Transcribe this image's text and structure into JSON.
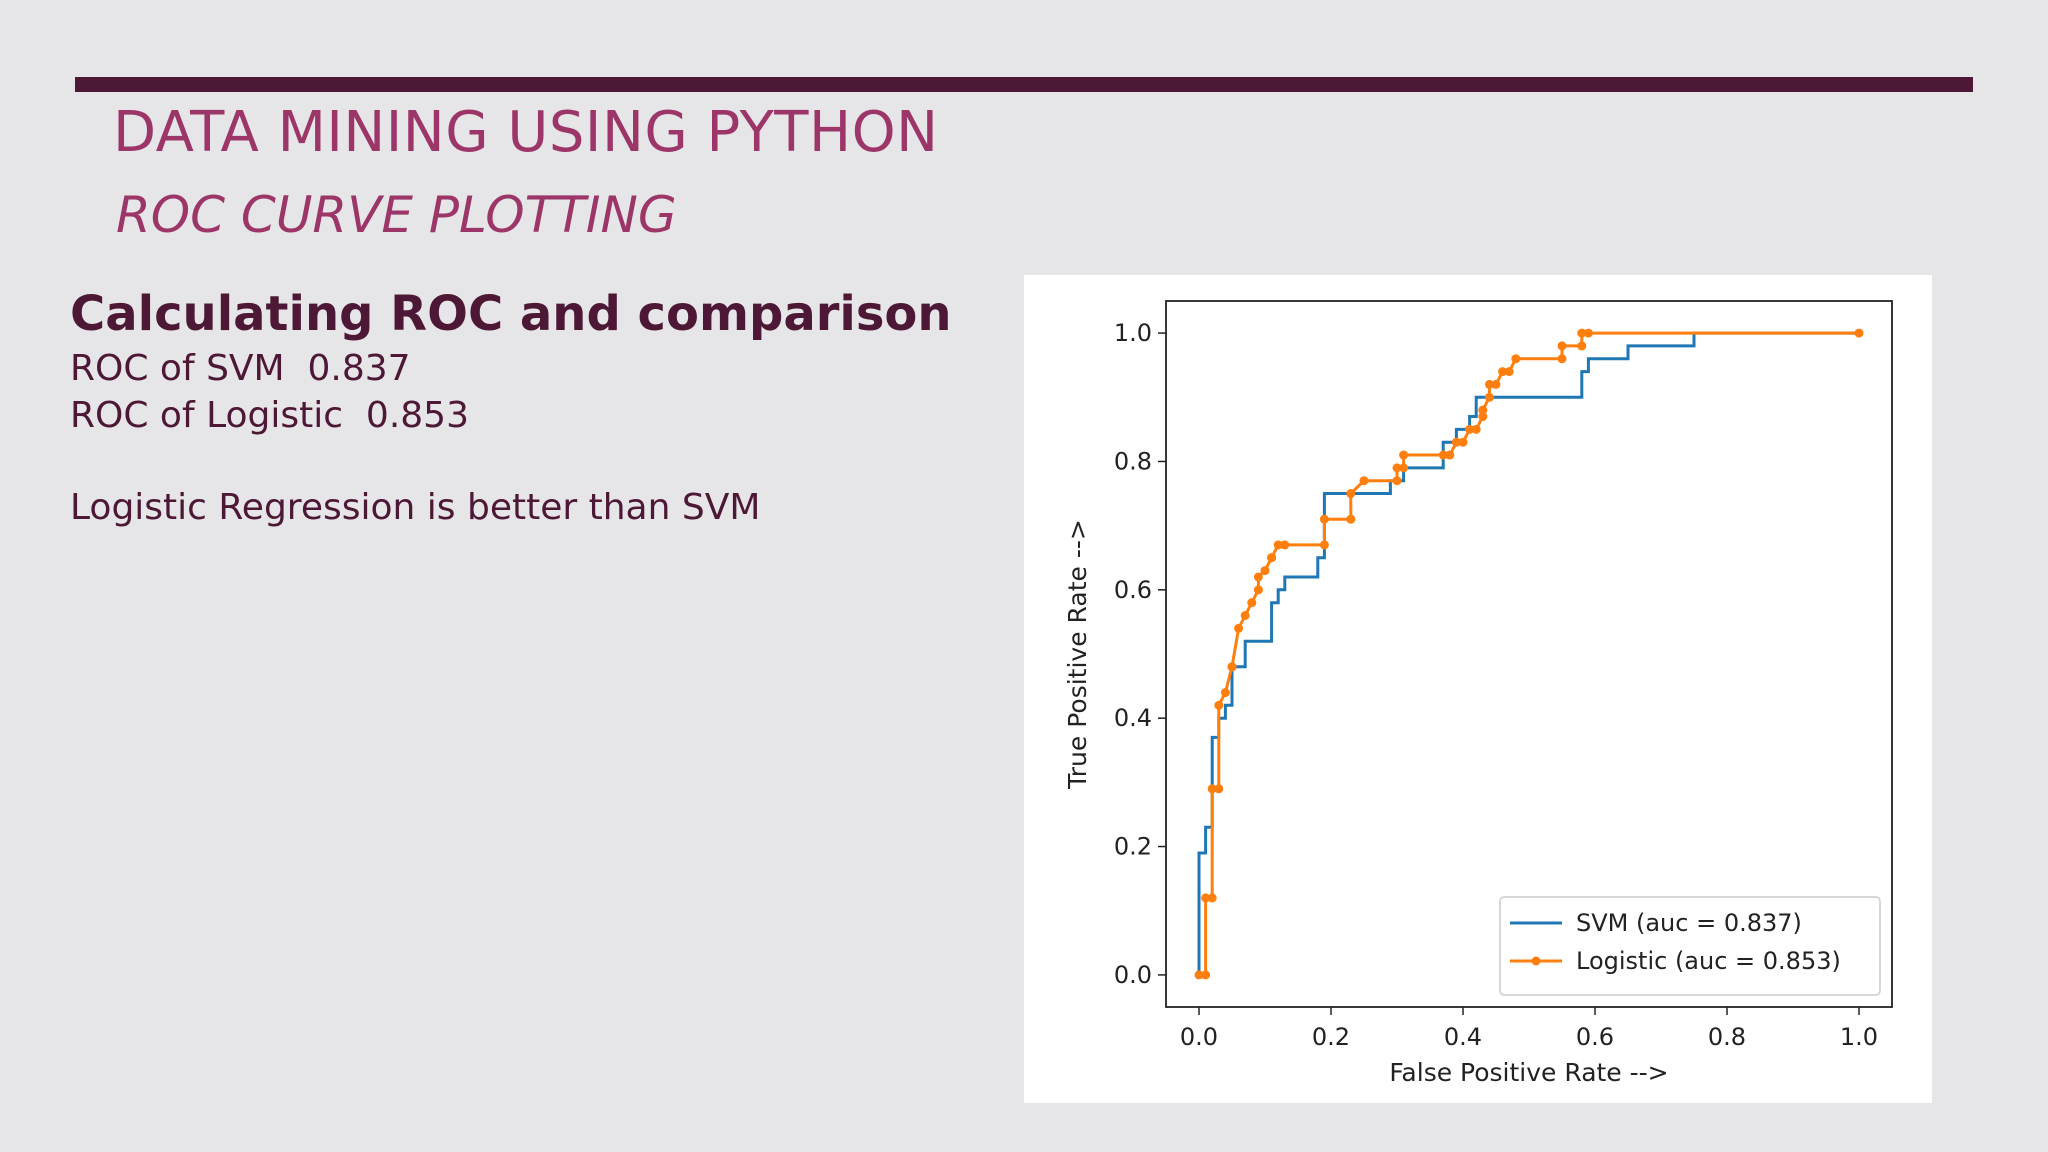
{
  "slide": {
    "title": "DATA MINING USING PYTHON",
    "subtitle": "ROC CURVE PLOTTING",
    "heading": "Calculating ROC and comparison",
    "lines": [
      "ROC of SVM  0.837",
      "ROC of Logistic  0.853",
      "Logistic Regression is better than SVM"
    ]
  },
  "chart_data": {
    "type": "line",
    "xlabel": "False Positive Rate -->",
    "ylabel": "True Positive Rate -->",
    "xlim": [
      -0.05,
      1.05
    ],
    "ylim": [
      -0.05,
      1.05
    ],
    "xticks": [
      0.0,
      0.2,
      0.4,
      0.6,
      0.8,
      1.0
    ],
    "yticks": [
      0.0,
      0.2,
      0.4,
      0.6,
      0.8,
      1.0
    ],
    "xtick_labels": [
      "0.0",
      "0.2",
      "0.4",
      "0.6",
      "0.8",
      "1.0"
    ],
    "ytick_labels": [
      "0.0",
      "0.2",
      "0.4",
      "0.6",
      "0.8",
      "1.0"
    ],
    "legend": "lower-right",
    "series": [
      {
        "name": "SVM (auc = 0.837)",
        "color": "#1f77b4",
        "marker": "none",
        "x": [
          0.0,
          0.0,
          0.01,
          0.01,
          0.02,
          0.02,
          0.03,
          0.03,
          0.04,
          0.04,
          0.05,
          0.05,
          0.07,
          0.07,
          0.11,
          0.11,
          0.12,
          0.12,
          0.13,
          0.13,
          0.18,
          0.18,
          0.19,
          0.19,
          0.21,
          0.21,
          0.29,
          0.29,
          0.31,
          0.31,
          0.37,
          0.37,
          0.39,
          0.39,
          0.41,
          0.41,
          0.42,
          0.42,
          0.44,
          0.44,
          0.58,
          0.58,
          0.59,
          0.59,
          0.65,
          0.65,
          0.75,
          0.75,
          1.0
        ],
        "y": [
          0.0,
          0.19,
          0.19,
          0.23,
          0.23,
          0.37,
          0.37,
          0.4,
          0.4,
          0.42,
          0.42,
          0.48,
          0.48,
          0.52,
          0.52,
          0.58,
          0.58,
          0.6,
          0.6,
          0.62,
          0.62,
          0.65,
          0.65,
          0.75,
          0.75,
          0.75,
          0.75,
          0.77,
          0.77,
          0.79,
          0.79,
          0.83,
          0.83,
          0.85,
          0.85,
          0.87,
          0.87,
          0.9,
          0.9,
          0.9,
          0.9,
          0.94,
          0.94,
          0.96,
          0.96,
          0.98,
          0.98,
          1.0,
          1.0
        ]
      },
      {
        "name": "Logistic (auc = 0.853)",
        "color": "#ff7f0e",
        "marker": "dot",
        "x": [
          0.0,
          0.01,
          0.01,
          0.02,
          0.02,
          0.03,
          0.03,
          0.04,
          0.05,
          0.05,
          0.06,
          0.07,
          0.08,
          0.09,
          0.09,
          0.1,
          0.11,
          0.11,
          0.12,
          0.13,
          0.19,
          0.19,
          0.23,
          0.23,
          0.25,
          0.3,
          0.3,
          0.31,
          0.31,
          0.37,
          0.38,
          0.39,
          0.4,
          0.41,
          0.42,
          0.43,
          0.43,
          0.44,
          0.44,
          0.45,
          0.46,
          0.47,
          0.48,
          0.55,
          0.55,
          0.58,
          0.58,
          0.59,
          1.0
        ],
        "y": [
          0.0,
          0.0,
          0.12,
          0.12,
          0.29,
          0.29,
          0.42,
          0.44,
          0.48,
          0.48,
          0.54,
          0.56,
          0.58,
          0.6,
          0.62,
          0.63,
          0.65,
          0.65,
          0.67,
          0.67,
          0.67,
          0.71,
          0.71,
          0.75,
          0.77,
          0.77,
          0.79,
          0.79,
          0.81,
          0.81,
          0.81,
          0.83,
          0.83,
          0.85,
          0.85,
          0.87,
          0.88,
          0.9,
          0.92,
          0.92,
          0.94,
          0.94,
          0.96,
          0.96,
          0.98,
          0.98,
          1.0,
          1.0,
          1.0
        ]
      }
    ]
  }
}
